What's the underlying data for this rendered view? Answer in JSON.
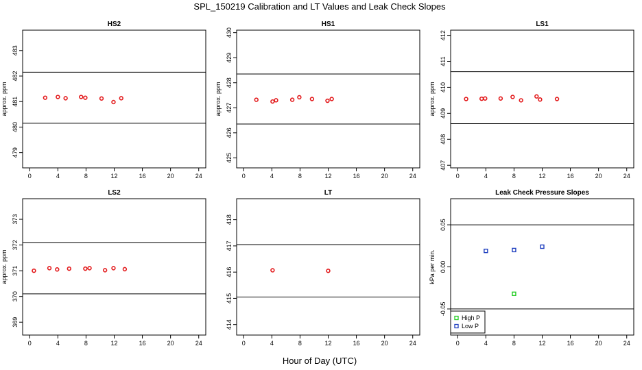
{
  "title": "SPL_150219  Calibration and LT Values and Leak Check Slopes",
  "xlabel": "Hour of Day (UTC)",
  "colors": {
    "red": "#e31a1c",
    "green": "#22cc22",
    "blue": "#1f3fbf",
    "line": "#000000"
  },
  "chart_data": [
    {
      "type": "scatter",
      "title": "HS2",
      "ylabel": "approx. ppm",
      "xlim": [
        -1,
        25
      ],
      "ylim": [
        478.4,
        483.8
      ],
      "xticks": [
        0,
        4,
        8,
        12,
        16,
        20,
        24
      ],
      "yticks": [
        479,
        480,
        481,
        482,
        483
      ],
      "hlines": [
        480.15,
        482.15
      ],
      "series": [
        {
          "color": "red",
          "marker": "circle",
          "x": [
            2.2,
            4.0,
            5.1,
            7.3,
            7.9,
            10.2,
            11.9,
            13.0
          ],
          "y": [
            481.15,
            481.18,
            481.13,
            481.18,
            481.15,
            481.12,
            480.98,
            481.13
          ]
        }
      ]
    },
    {
      "type": "scatter",
      "title": "HS1",
      "ylabel": "approx. ppm",
      "xlim": [
        -1,
        25
      ],
      "ylim": [
        424.6,
        430.1
      ],
      "xticks": [
        0,
        4,
        8,
        12,
        16,
        20,
        24
      ],
      "yticks": [
        425,
        426,
        427,
        428,
        429,
        430
      ],
      "hlines": [
        426.35,
        428.35
      ],
      "series": [
        {
          "color": "red",
          "marker": "circle",
          "x": [
            1.8,
            4.1,
            4.6,
            6.9,
            7.9,
            9.7,
            11.9,
            12.5
          ],
          "y": [
            427.32,
            427.25,
            427.3,
            427.32,
            427.42,
            427.35,
            427.28,
            427.35
          ]
        }
      ]
    },
    {
      "type": "scatter",
      "title": "LS1",
      "ylabel": "approx. ppm",
      "xlim": [
        -1,
        25
      ],
      "ylim": [
        406.9,
        412.2
      ],
      "xticks": [
        0,
        4,
        8,
        12,
        16,
        20,
        24
      ],
      "yticks": [
        407,
        408,
        409,
        410,
        411,
        412
      ],
      "hlines": [
        408.6,
        410.6
      ],
      "series": [
        {
          "color": "red",
          "marker": "circle",
          "x": [
            1.2,
            3.4,
            3.9,
            6.1,
            7.8,
            9.0,
            11.2,
            11.7,
            14.1
          ],
          "y": [
            409.55,
            409.56,
            409.57,
            409.57,
            409.63,
            409.5,
            409.65,
            409.53,
            409.55
          ]
        }
      ]
    },
    {
      "type": "scatter",
      "title": "LS2",
      "ylabel": "approx. ppm",
      "xlim": [
        -1,
        25
      ],
      "ylim": [
        368.5,
        373.8
      ],
      "xticks": [
        0,
        4,
        8,
        12,
        16,
        20,
        24
      ],
      "yticks": [
        369,
        370,
        371,
        372,
        373
      ],
      "hlines": [
        370.1,
        372.1
      ],
      "series": [
        {
          "color": "red",
          "marker": "circle",
          "x": [
            0.6,
            2.8,
            3.9,
            5.6,
            7.9,
            8.5,
            10.7,
            11.9,
            13.5
          ],
          "y": [
            371.0,
            371.1,
            371.05,
            371.08,
            371.08,
            371.1,
            371.02,
            371.1,
            371.06
          ]
        }
      ]
    },
    {
      "type": "scatter",
      "title": "LT",
      "ylabel": "",
      "xlim": [
        -1,
        25
      ],
      "ylim": [
        413.6,
        418.8
      ],
      "xticks": [
        0,
        4,
        8,
        12,
        16,
        20,
        24
      ],
      "yticks": [
        414,
        415,
        416,
        417,
        418
      ],
      "hlines": [
        415.05,
        417.05
      ],
      "series": [
        {
          "color": "red",
          "marker": "circle",
          "x": [
            4.1,
            12.0
          ],
          "y": [
            416.07,
            416.05
          ]
        }
      ]
    },
    {
      "type": "scatter",
      "title": "Leak Check Pressure Slopes",
      "ylabel": "kPa per min.",
      "xlim": [
        -1,
        25
      ],
      "ylim": [
        -0.081,
        0.081
      ],
      "xticks": [
        0,
        4,
        8,
        12,
        16,
        20,
        24
      ],
      "yticks": [
        -0.05,
        0.0,
        0.05
      ],
      "ytick_labels": [
        "-0.05",
        "0.00",
        "0.05"
      ],
      "hlines": [
        -0.05,
        0.05
      ],
      "series": [
        {
          "name": "High P",
          "color": "green",
          "marker": "square",
          "x": [
            8.0
          ],
          "y": [
            -0.032
          ]
        },
        {
          "name": "Low P",
          "color": "blue",
          "marker": "square",
          "x": [
            4.0,
            8.0,
            12.0
          ],
          "y": [
            0.019,
            0.02,
            0.024
          ]
        }
      ],
      "legend": "bottom-left"
    }
  ]
}
